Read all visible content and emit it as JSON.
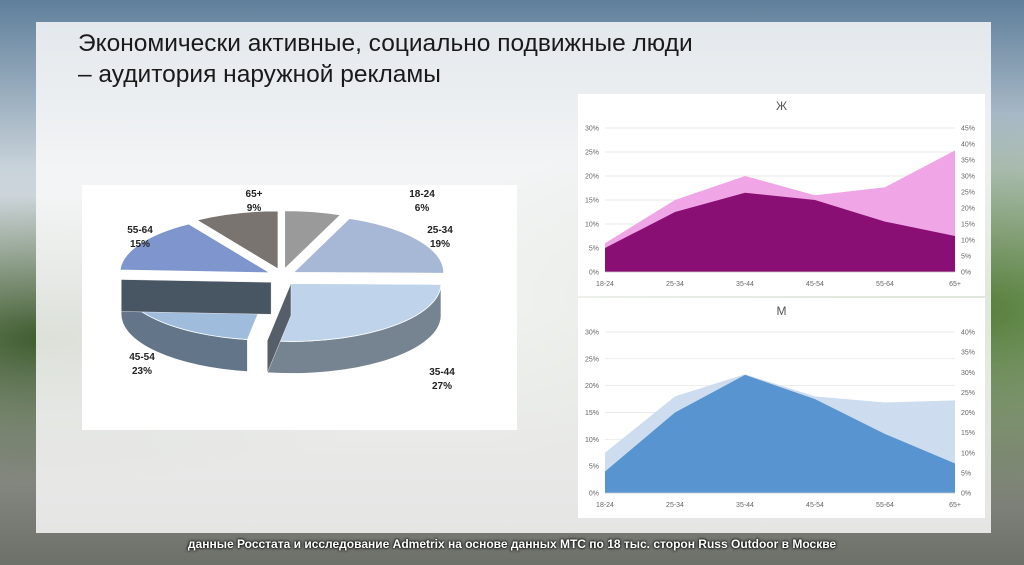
{
  "title": "Экономически активные, социально подвижные люди\n– аудитория наружной рекламы",
  "footnote": "данные Росстата и исследование Admetrix на основе данных МТС по 18 тыс. сторон Russ Outdoor в Москве",
  "chart_data": [
    {
      "type": "pie",
      "categories": [
        "18-24",
        "25-34",
        "35-44",
        "45-54",
        "55-64",
        "65+"
      ],
      "values": [
        6,
        19,
        27,
        23,
        15,
        9
      ],
      "value_labels": [
        "6%",
        "19%",
        "27%",
        "23%",
        "15%",
        "9%"
      ],
      "colors": [
        "#9a9a9a",
        "#a7b8d6",
        "#bfd4ea",
        "#9fbcdc",
        "#7e95cd",
        "#7a7470"
      ],
      "style": "3d-exploded"
    },
    {
      "type": "area",
      "title": "Ж",
      "x": [
        "18-24",
        "25-34",
        "35-44",
        "45-54",
        "55-64",
        "65+"
      ],
      "y_left_ticks": [
        "0%",
        "5%",
        "10%",
        "15%",
        "20%",
        "25%",
        "30%"
      ],
      "y_right_ticks": [
        "0%",
        "5%",
        "10%",
        "15%",
        "20%",
        "25%",
        "30%",
        "35%",
        "40%",
        "45%"
      ],
      "ylim_left": [
        0,
        30
      ],
      "ylim_right": [
        0,
        45
      ],
      "series": [
        {
          "axis": "right",
          "color": "#f0a6e6",
          "values": [
            9,
            22.5,
            30,
            24,
            26.5,
            38
          ]
        },
        {
          "axis": "left",
          "color": "#8a0f74",
          "values": [
            5,
            12.5,
            16.5,
            15,
            10.5,
            7.5
          ]
        }
      ]
    },
    {
      "type": "area",
      "title": "М",
      "x": [
        "18-24",
        "25-34",
        "35-44",
        "45-54",
        "55-64",
        "65+"
      ],
      "y_left_ticks": [
        "0%",
        "5%",
        "10%",
        "15%",
        "20%",
        "25%",
        "30%"
      ],
      "y_right_ticks": [
        "0%",
        "5%",
        "10%",
        "15%",
        "20%",
        "25%",
        "30%",
        "35%",
        "40%"
      ],
      "ylim_left": [
        0,
        30
      ],
      "ylim_right": [
        0,
        40
      ],
      "series": [
        {
          "axis": "right",
          "color": "#cddcef",
          "values": [
            10,
            24,
            29.5,
            24,
            22.5,
            23
          ]
        },
        {
          "axis": "left",
          "color": "#5894cf",
          "values": [
            4,
            15,
            22,
            17.5,
            11,
            5.5
          ]
        }
      ]
    }
  ]
}
